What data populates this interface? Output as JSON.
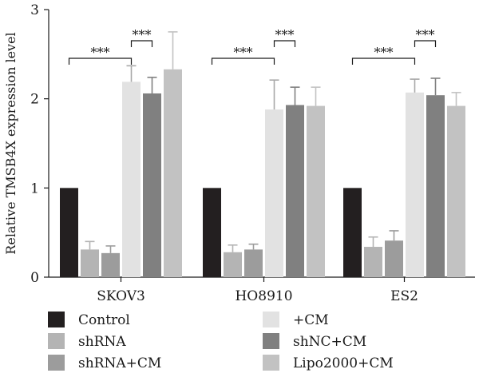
{
  "chart_data": {
    "type": "bar",
    "title": "",
    "xlabel": "",
    "ylabel": "Relative TMSB4X expression level",
    "ylim": [
      0,
      3
    ],
    "yticks": [
      "0",
      "1",
      "2",
      "3"
    ],
    "categories": [
      "SKOV3",
      "HO8910",
      "ES2"
    ],
    "series": [
      {
        "name": "Control",
        "color": "#231f20",
        "values": [
          1.0,
          1.0,
          1.0
        ],
        "errors": [
          0,
          0,
          0
        ]
      },
      {
        "name": "shRNA",
        "color": "#b4b4b4",
        "values": [
          0.31,
          0.28,
          0.34
        ],
        "errors": [
          0.09,
          0.08,
          0.11
        ]
      },
      {
        "name": "shRNA+CM",
        "color": "#9c9c9c",
        "values": [
          0.27,
          0.31,
          0.41
        ],
        "errors": [
          0.08,
          0.06,
          0.11
        ]
      },
      {
        "name": "+CM",
        "color": "#e2e2e2",
        "values": [
          2.19,
          1.88,
          2.07
        ],
        "errors": [
          0.18,
          0.33,
          0.15
        ]
      },
      {
        "name": "shNC+CM",
        "color": "#808080",
        "values": [
          2.06,
          1.93,
          2.04
        ],
        "errors": [
          0.18,
          0.2,
          0.19
        ]
      },
      {
        "name": "Lipo2000+CM",
        "color": "#c2c2c2",
        "values": [
          2.33,
          1.92,
          1.92
        ],
        "errors": [
          0.42,
          0.21,
          0.15
        ]
      }
    ],
    "significance": {
      "label": "***",
      "comparisons": [
        {
          "category": 0,
          "from": 0,
          "to": 3
        },
        {
          "category": 0,
          "from": 3,
          "to": 4
        },
        {
          "category": 1,
          "from": 0,
          "to": 3
        },
        {
          "category": 1,
          "from": 3,
          "to": 4
        },
        {
          "category": 2,
          "from": 0,
          "to": 3
        },
        {
          "category": 2,
          "from": 3,
          "to": 4
        }
      ]
    },
    "legend": {
      "placement": "bottom",
      "order": [
        [
          0,
          3
        ],
        [
          1,
          4
        ],
        [
          2,
          5
        ]
      ]
    },
    "grid": false
  }
}
